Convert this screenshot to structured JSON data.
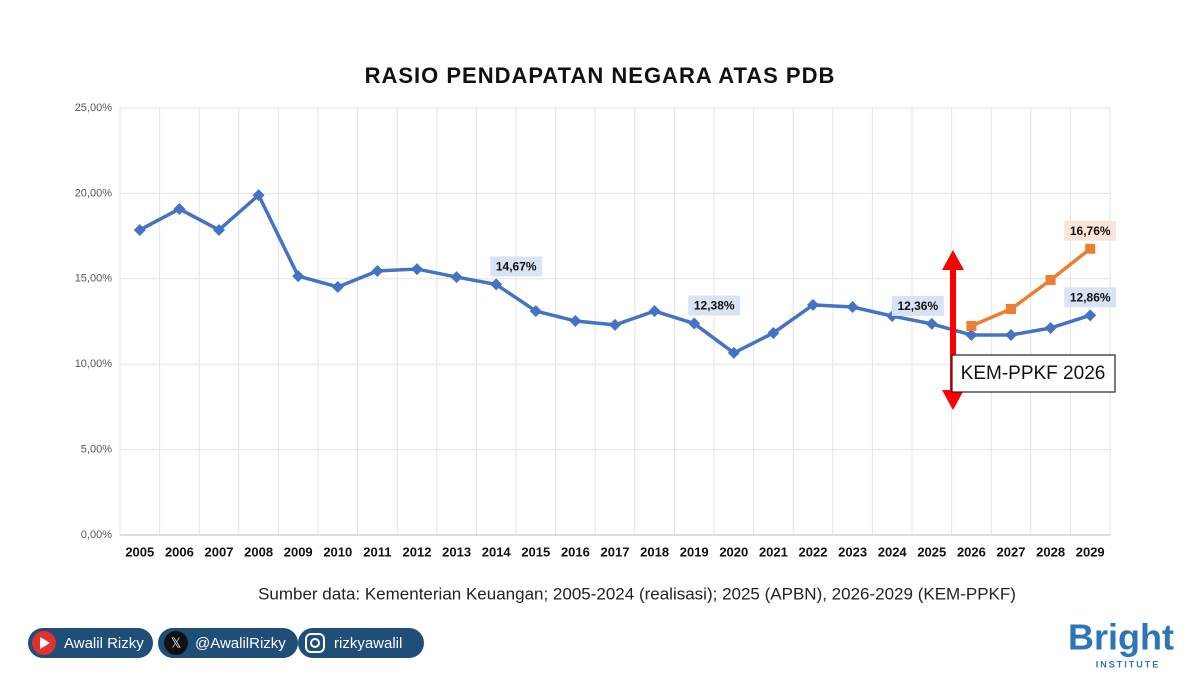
{
  "chart_data": {
    "type": "line",
    "title": "RASIO PENDAPATAN NEGARA ATAS PDB",
    "categories": [
      "2005",
      "2006",
      "2007",
      "2008",
      "2009",
      "2010",
      "2011",
      "2012",
      "2013",
      "2014",
      "2015",
      "2016",
      "2017",
      "2018",
      "2019",
      "2020",
      "2021",
      "2022",
      "2023",
      "2024",
      "2025",
      "2026",
      "2027",
      "2028",
      "2029"
    ],
    "series": [
      {
        "color": "#4472c4",
        "marker": "diamond",
        "values": [
          17.86,
          19.09,
          17.86,
          19.9,
          15.16,
          14.52,
          15.46,
          15.57,
          15.1,
          14.67,
          13.11,
          12.53,
          12.3,
          13.11,
          12.38,
          10.66,
          11.83,
          13.47,
          13.35,
          12.82,
          12.36,
          11.71,
          11.71,
          12.12,
          12.86
        ],
        "value_labels": [
          null,
          null,
          null,
          null,
          null,
          null,
          null,
          null,
          null,
          "14,67%",
          null,
          null,
          null,
          null,
          "12,38%",
          null,
          null,
          null,
          null,
          null,
          "12,36%",
          null,
          null,
          null,
          "12,86%"
        ]
      },
      {
        "color": "#ed7d31",
        "marker": "square",
        "values": [
          null,
          null,
          null,
          null,
          null,
          null,
          null,
          null,
          null,
          null,
          null,
          null,
          null,
          null,
          null,
          null,
          null,
          null,
          null,
          null,
          null,
          12.24,
          13.23,
          14.93,
          16.76
        ],
        "value_labels": [
          null,
          null,
          null,
          null,
          null,
          null,
          null,
          null,
          null,
          null,
          null,
          null,
          null,
          null,
          null,
          null,
          null,
          null,
          null,
          null,
          null,
          null,
          null,
          null,
          "16,76%"
        ]
      }
    ],
    "ylim": [
      0,
      25
    ],
    "yticks": [
      {
        "value": 0,
        "label": "0,00%"
      },
      {
        "value": 5,
        "label": "5,00%"
      },
      {
        "value": 10,
        "label": "10,00%"
      },
      {
        "value": 15,
        "label": "15,00%"
      },
      {
        "value": 20,
        "label": "20,00%"
      },
      {
        "value": 25,
        "label": "25,00%"
      }
    ],
    "grid": true,
    "annotation": "KEM-PPKF 2026",
    "source": "Sumber data: Kementerian Keuangan; 2005-2024 (realisasi); 2025 (APBN), 2026-2029 (KEM-PPKF)"
  },
  "footer": {
    "youtube": "Awalil Rizky",
    "x": "@AwalilRizky",
    "instagram": "rizkyawalil",
    "logo": "Bright",
    "logo_sub": "INSTITUTE"
  }
}
